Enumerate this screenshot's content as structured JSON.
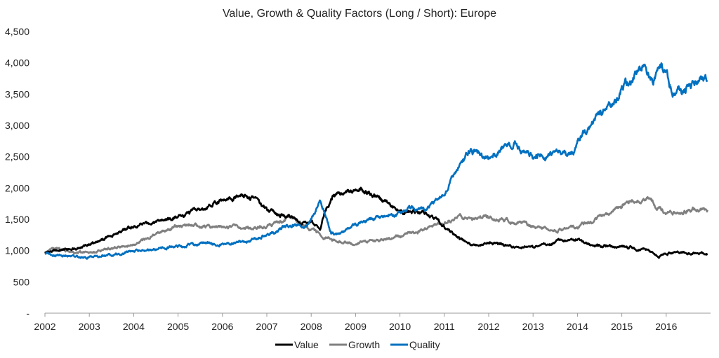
{
  "chart_data": {
    "type": "line",
    "title": "Value, Growth & Quality Factors (Long / Short): Europe",
    "xlabel": "",
    "ylabel": "",
    "xlim": [
      2002,
      2017
    ],
    "ylim": [
      0,
      4500
    ],
    "y_ticks": [
      {
        "value": 0,
        "label": "-"
      },
      {
        "value": 500,
        "label": "500"
      },
      {
        "value": 1000,
        "label": "1,000"
      },
      {
        "value": 1500,
        "label": "1,500"
      },
      {
        "value": 2000,
        "label": "2,000"
      },
      {
        "value": 2500,
        "label": "2,500"
      },
      {
        "value": 3000,
        "label": "3,000"
      },
      {
        "value": 3500,
        "label": "3,500"
      },
      {
        "value": 4000,
        "label": "4,000"
      },
      {
        "value": 4500,
        "label": "4,500"
      }
    ],
    "x_ticks": [
      "2002",
      "2003",
      "2004",
      "2005",
      "2006",
      "2007",
      "2008",
      "2009",
      "2010",
      "2011",
      "2012",
      "2013",
      "2014",
      "2015",
      "2016"
    ],
    "grid": false,
    "legend_position": "bottom",
    "series": [
      {
        "name": "Value",
        "color": "#000000",
        "x": [
          2002.0,
          2002.5,
          2003.0,
          2003.5,
          2004.0,
          2004.5,
          2005.0,
          2005.5,
          2006.0,
          2006.5,
          2006.8,
          2007.0,
          2007.2,
          2007.5,
          2007.8,
          2008.0,
          2008.2,
          2008.35,
          2008.5,
          2008.8,
          2009.0,
          2009.3,
          2009.6,
          2009.9,
          2010.2,
          2010.5,
          2010.8,
          2011.0,
          2011.3,
          2011.6,
          2011.8,
          2012.0,
          2012.3,
          2012.6,
          2013.0,
          2013.3,
          2013.6,
          2014.0,
          2014.3,
          2014.6,
          2015.0,
          2015.2,
          2015.6,
          2015.8,
          2016.0,
          2016.3,
          2016.6,
          2016.93
        ],
        "y": [
          970,
          1020,
          1100,
          1230,
          1390,
          1470,
          1540,
          1660,
          1830,
          1860,
          1830,
          1650,
          1600,
          1560,
          1430,
          1450,
          1350,
          1700,
          1900,
          1950,
          1970,
          1940,
          1830,
          1680,
          1620,
          1600,
          1500,
          1380,
          1200,
          1100,
          1080,
          1130,
          1100,
          1050,
          1040,
          1100,
          1160,
          1160,
          1100,
          1080,
          1060,
          1050,
          1000,
          900,
          950,
          980,
          960,
          930
        ]
      },
      {
        "name": "Growth",
        "color": "#808080",
        "x": [
          2002.0,
          2002.3,
          2002.6,
          2003.0,
          2003.5,
          2004.0,
          2004.5,
          2005.0,
          2005.5,
          2006.0,
          2006.5,
          2007.0,
          2007.3,
          2007.6,
          2007.8,
          2008.0,
          2008.3,
          2008.6,
          2009.0,
          2009.5,
          2010.0,
          2010.5,
          2011.0,
          2011.3,
          2011.6,
          2012.0,
          2012.5,
          2013.0,
          2013.5,
          2014.0,
          2014.3,
          2014.6,
          2015.0,
          2015.2,
          2015.4,
          2015.6,
          2015.8,
          2016.0,
          2016.3,
          2016.6,
          2016.93
        ],
        "y": [
          980,
          1050,
          960,
          980,
          1030,
          1100,
          1250,
          1400,
          1380,
          1400,
          1370,
          1390,
          1450,
          1520,
          1440,
          1330,
          1200,
          1160,
          1120,
          1160,
          1230,
          1330,
          1450,
          1520,
          1500,
          1530,
          1480,
          1390,
          1330,
          1380,
          1460,
          1560,
          1700,
          1850,
          1780,
          1820,
          1700,
          1600,
          1600,
          1660,
          1650
        ]
      },
      {
        "name": "Quality",
        "color": "#0070c0",
        "x": [
          2002.0,
          2002.4,
          2002.8,
          2003.0,
          2003.3,
          2003.7,
          2004.0,
          2004.5,
          2005.0,
          2005.5,
          2006.0,
          2006.5,
          2007.0,
          2007.3,
          2007.6,
          2007.9,
          2008.0,
          2008.2,
          2008.3,
          2008.45,
          2008.6,
          2008.8,
          2009.0,
          2009.5,
          2010.0,
          2010.3,
          2010.6,
          2010.8,
          2011.0,
          2011.3,
          2011.6,
          2011.8,
          2012.0,
          2012.3,
          2012.6,
          2012.8,
          2013.0,
          2013.3,
          2013.6,
          2013.9,
          2014.0,
          2014.3,
          2014.6,
          2014.9,
          2015.0,
          2015.3,
          2015.5,
          2015.7,
          2015.9,
          2016.0,
          2016.2,
          2016.5,
          2016.8,
          2016.93
        ],
        "y": [
          960,
          920,
          900,
          880,
          920,
          950,
          1000,
          1030,
          1060,
          1100,
          1100,
          1150,
          1250,
          1350,
          1420,
          1400,
          1500,
          1800,
          1600,
          1280,
          1250,
          1330,
          1420,
          1520,
          1600,
          1700,
          1650,
          1800,
          1950,
          2300,
          2600,
          2500,
          2450,
          2650,
          2700,
          2550,
          2500,
          2530,
          2580,
          2520,
          2700,
          3000,
          3200,
          3400,
          3600,
          3800,
          3900,
          3700,
          3950,
          3750,
          3500,
          3600,
          3750,
          3700
        ]
      }
    ]
  }
}
